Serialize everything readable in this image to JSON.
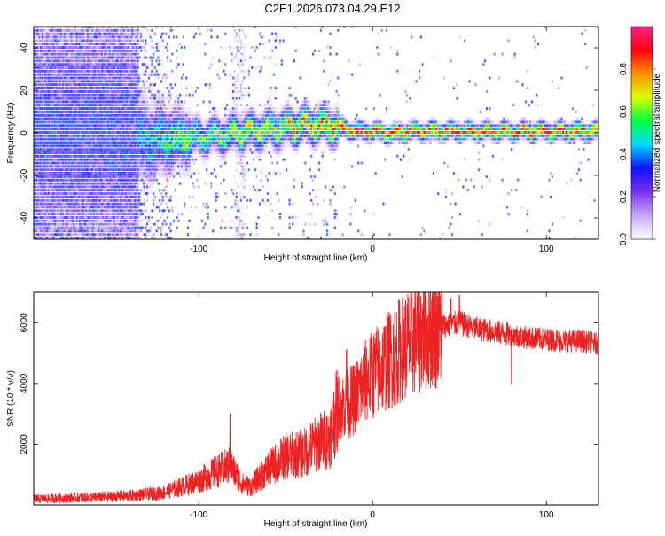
{
  "title": "C2E1.2026.073.04.29.E12",
  "chart_data": [
    {
      "type": "heatmap",
      "xlabel": "Height of straight line (km)",
      "ylabel": "Frequency (Hz)",
      "xlim": [
        -195,
        130
      ],
      "ylim": [
        -50,
        50
      ],
      "x_ticks": [
        -100,
        0,
        100
      ],
      "y_ticks": [
        -40,
        -20,
        0,
        20,
        40
      ],
      "colorbar": {
        "label": "Normalized spectral amplitude",
        "range": [
          0,
          1
        ],
        "ticks": [
          0.0,
          0.2,
          0.4,
          0.6,
          0.8
        ],
        "stops": [
          "#ffffff",
          "#c8a8f8",
          "#7b2ff0",
          "#1010ff",
          "#00d8ff",
          "#00ff40",
          "#d8ff00",
          "#ff9000",
          "#ff0010",
          "#ff2090"
        ]
      },
      "frequency_trace": {
        "x": [
          -195,
          -170,
          -150,
          -130,
          -110,
          -90,
          -70,
          -50,
          -40,
          -30,
          -20,
          -10,
          0,
          10,
          20,
          40,
          60,
          80,
          100,
          120,
          130
        ],
        "y": [
          0,
          0,
          0,
          -4,
          -3,
          -2,
          0,
          2,
          3,
          3,
          2,
          0,
          0,
          -1,
          0,
          0,
          0,
          0,
          0,
          0,
          0
        ]
      }
    },
    {
      "type": "line",
      "xlabel": "Height of straight line (km)",
      "ylabel": "SNR (10 * v/v)",
      "xlim": [
        -195,
        130
      ],
      "ylim": [
        0,
        7000
      ],
      "x_ticks": [
        -100,
        0,
        100
      ],
      "y_ticks": [
        2000,
        4000,
        6000
      ],
      "series": [
        {
          "name": "SNR",
          "color": "#ee2222",
          "x": [
            -195,
            -180,
            -160,
            -140,
            -120,
            -110,
            -100,
            -90,
            -82,
            -75,
            -70,
            -60,
            -50,
            -40,
            -30,
            -25,
            -20,
            -15,
            -10,
            -5,
            0,
            10,
            20,
            30,
            40,
            50,
            60,
            70,
            80,
            90,
            100,
            110,
            120,
            130
          ],
          "y": [
            200,
            220,
            250,
            300,
            400,
            600,
            800,
            1100,
            1300,
            700,
            600,
            1200,
            1600,
            1700,
            2100,
            2200,
            3200,
            3300,
            3500,
            4000,
            4300,
            4800,
            5300,
            5700,
            5900,
            6000,
            5800,
            5700,
            5600,
            5500,
            5450,
            5400,
            5400,
            5300
          ]
        }
      ],
      "spikes": [
        {
          "x": -82,
          "y": 3000
        },
        {
          "x": -15,
          "y": 5100
        },
        {
          "x": 45,
          "y": 6800
        },
        {
          "x": 50,
          "y": 6900
        },
        {
          "x": 80,
          "y": 4000
        }
      ]
    }
  ]
}
